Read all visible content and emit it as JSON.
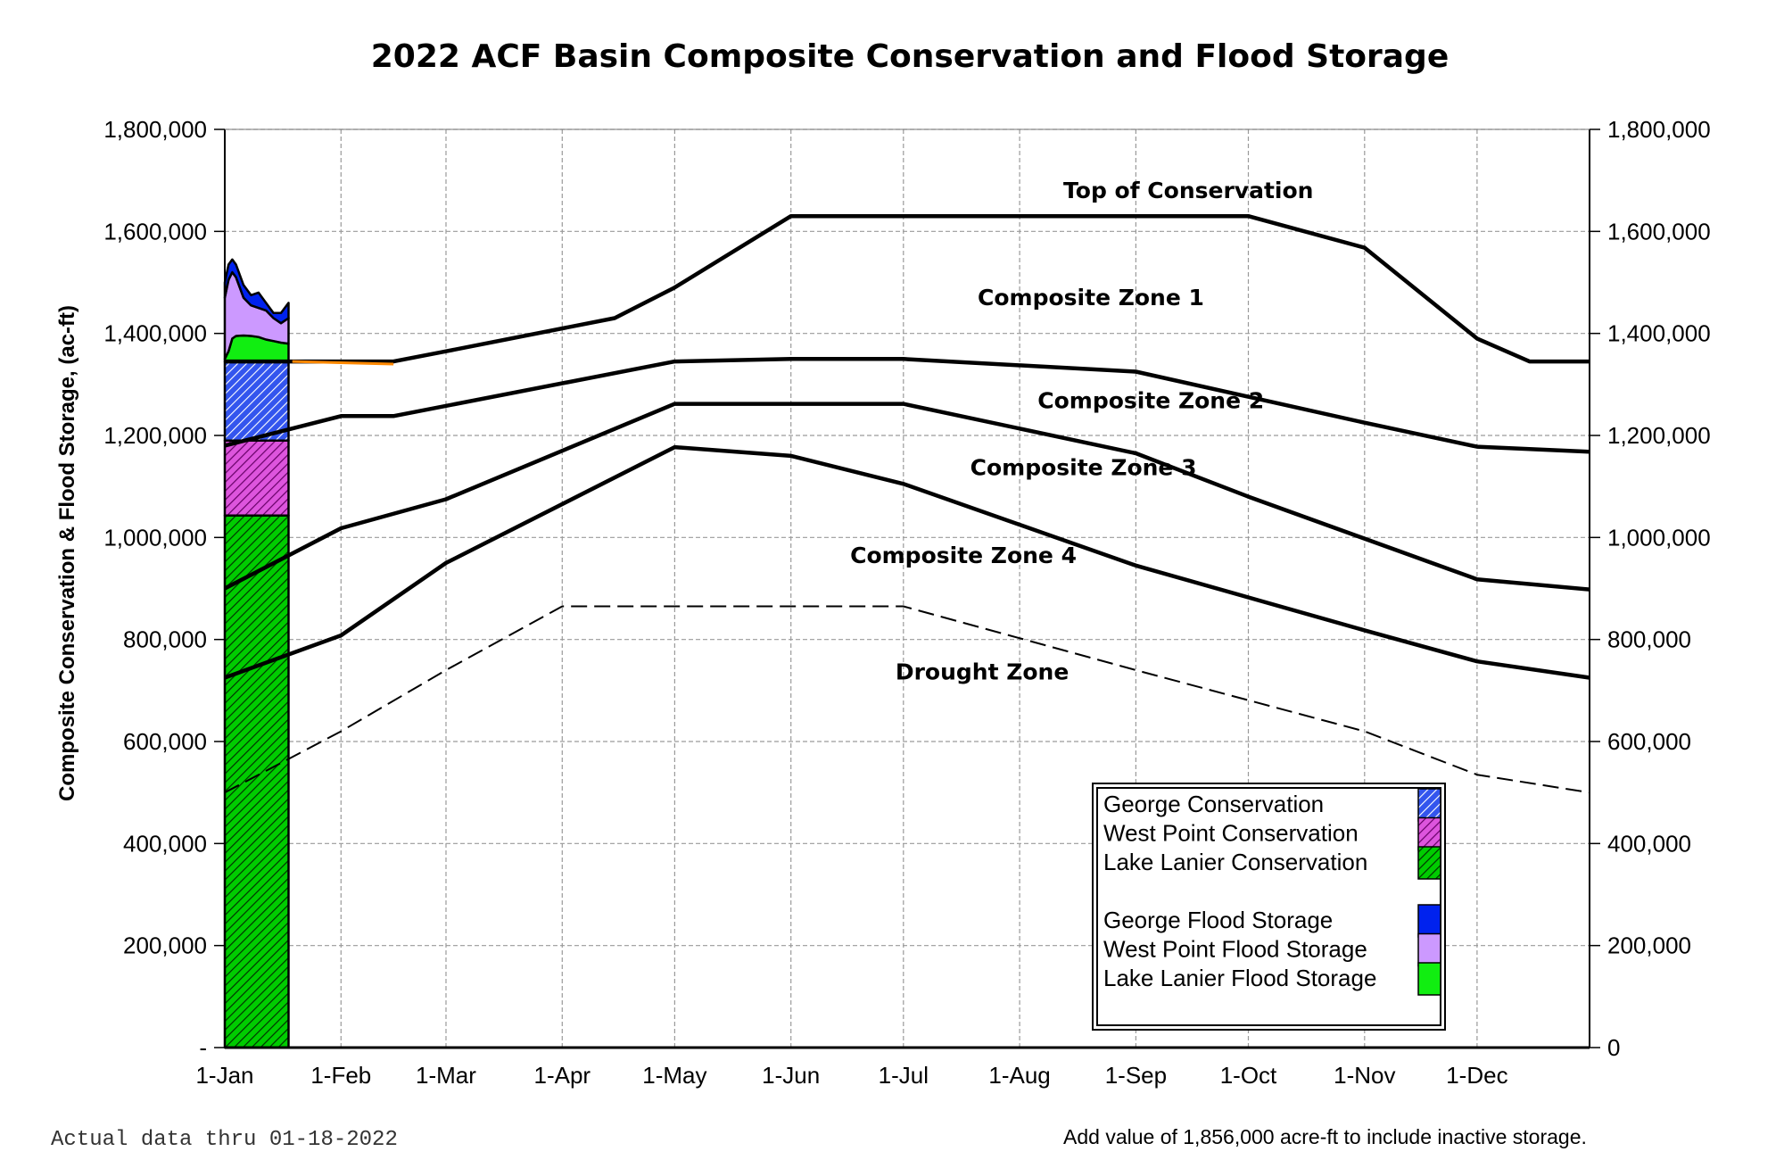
{
  "chart_data": {
    "type": "area",
    "title": "2022 ACF Basin Composite Conservation and Flood Storage",
    "ylabel": "Composite Conservation & Flood Storage, (ac-ft)",
    "xlabel": "",
    "ylim": [
      0,
      1800000
    ],
    "xlim": [
      "2022-01-01",
      "2022-12-31"
    ],
    "x_ticks": [
      "1-Jan",
      "1-Feb",
      "1-Mar",
      "1-Apr",
      "1-May",
      "1-Jun",
      "1-Jul",
      "1-Aug",
      "1-Sep",
      "1-Oct",
      "1-Nov",
      "1-Dec"
    ],
    "x_tick_dates": [
      "2022-01-01",
      "2022-02-01",
      "2022-03-01",
      "2022-04-01",
      "2022-05-01",
      "2022-06-01",
      "2022-07-01",
      "2022-08-01",
      "2022-09-01",
      "2022-10-01",
      "2022-11-01",
      "2022-12-01"
    ],
    "y_ticks_left": [
      "-",
      "200,000",
      "400,000",
      "600,000",
      "800,000",
      "1,000,000",
      "1,200,000",
      "1,400,000",
      "1,600,000",
      "1,800,000"
    ],
    "y_ticks_right": [
      "0",
      "200,000",
      "400,000",
      "600,000",
      "800,000",
      "1,000,000",
      "1,200,000",
      "1,400,000",
      "1,600,000",
      "1,800,000"
    ],
    "y_tick_values": [
      0,
      200000,
      400000,
      600000,
      800000,
      1000000,
      1200000,
      1400000,
      1600000,
      1800000
    ],
    "grid": true,
    "zone_lines": [
      {
        "name": "Top of Conservation",
        "style": "solid",
        "points": [
          [
            "2022-01-01",
            1345000
          ],
          [
            "2022-02-15",
            1345000
          ],
          [
            "2022-03-01",
            1365000
          ],
          [
            "2022-04-15",
            1430000
          ],
          [
            "2022-05-01",
            1490000
          ],
          [
            "2022-06-01",
            1630000
          ],
          [
            "2022-10-01",
            1630000
          ],
          [
            "2022-11-01",
            1568000
          ],
          [
            "2022-12-01",
            1390000
          ],
          [
            "2022-12-15",
            1345000
          ],
          [
            "2022-12-31",
            1345000
          ]
        ]
      },
      {
        "name": "Composite Zone 1 lower",
        "style": "solid",
        "points": [
          [
            "2022-01-01",
            1180000
          ],
          [
            "2022-02-01",
            1238000
          ],
          [
            "2022-02-15",
            1238000
          ],
          [
            "2022-05-01",
            1345000
          ],
          [
            "2022-06-01",
            1350000
          ],
          [
            "2022-07-01",
            1350000
          ],
          [
            "2022-09-01",
            1325000
          ],
          [
            "2022-11-01",
            1225000
          ],
          [
            "2022-12-01",
            1178000
          ],
          [
            "2022-12-31",
            1168000
          ]
        ]
      },
      {
        "name": "Composite Zone 2 lower",
        "style": "solid",
        "points": [
          [
            "2022-01-01",
            900000
          ],
          [
            "2022-02-01",
            1018000
          ],
          [
            "2022-03-01",
            1075000
          ],
          [
            "2022-05-01",
            1262000
          ],
          [
            "2022-07-01",
            1262000
          ],
          [
            "2022-09-01",
            1165000
          ],
          [
            "2022-10-01",
            1080000
          ],
          [
            "2022-12-01",
            918000
          ],
          [
            "2022-12-31",
            898000
          ]
        ]
      },
      {
        "name": "Composite Zone 3 lower",
        "style": "solid",
        "points": [
          [
            "2022-01-01",
            725000
          ],
          [
            "2022-02-01",
            808000
          ],
          [
            "2022-03-01",
            950000
          ],
          [
            "2022-05-01",
            1177000
          ],
          [
            "2022-06-01",
            1160000
          ],
          [
            "2022-07-01",
            1105000
          ],
          [
            "2022-09-01",
            945000
          ],
          [
            "2022-11-01",
            818000
          ],
          [
            "2022-12-01",
            757000
          ],
          [
            "2022-12-31",
            725000
          ]
        ]
      },
      {
        "name": "Drought line",
        "style": "dashed",
        "points": [
          [
            "2022-01-01",
            500000
          ],
          [
            "2022-02-01",
            620000
          ],
          [
            "2022-03-01",
            740000
          ],
          [
            "2022-04-01",
            865000
          ],
          [
            "2022-07-01",
            865000
          ],
          [
            "2022-09-01",
            740000
          ],
          [
            "2022-11-01",
            620000
          ],
          [
            "2022-12-01",
            535000
          ],
          [
            "2022-12-31",
            500000
          ]
        ]
      }
    ],
    "zone_labels": [
      {
        "text": "Top of Conservation",
        "date": "2022-09-15",
        "value": 1665000
      },
      {
        "text": "Composite Zone 1",
        "date": "2022-08-20",
        "value": 1455000
      },
      {
        "text": "Composite Zone 2",
        "date": "2022-09-05",
        "value": 1253000
      },
      {
        "text": "Composite Zone 3",
        "date": "2022-08-18",
        "value": 1122000
      },
      {
        "text": "Composite Zone 4",
        "date": "2022-07-17",
        "value": 950000
      },
      {
        "text": "Drought Zone",
        "date": "2022-07-22",
        "value": 722000
      }
    ],
    "series": [
      {
        "name": "Lake Lanier Conservation",
        "color": "#00cc00",
        "pattern": "hatch",
        "x": [
          "2022-01-01",
          "2022-01-18"
        ],
        "lower": [
          0,
          0
        ],
        "upper": [
          1043000,
          1043000
        ]
      },
      {
        "name": "West Point Conservation",
        "color": "#cc33cc",
        "pattern": "hatch",
        "x": [
          "2022-01-01",
          "2022-01-18"
        ],
        "lower": [
          1043000,
          1043000
        ],
        "upper": [
          1190000,
          1190000
        ]
      },
      {
        "name": "George Conservation",
        "color": "#2244dd",
        "pattern": "hatch",
        "x": [
          "2022-01-01",
          "2022-01-18"
        ],
        "lower": [
          1190000,
          1190000
        ],
        "upper": [
          1345000,
          1345000
        ]
      },
      {
        "name": "Lake Lanier Flood Storage",
        "color": "#11ee11",
        "pattern": "solid",
        "x": [
          "2022-01-01",
          "2022-01-02",
          "2022-01-03",
          "2022-01-04",
          "2022-01-06",
          "2022-01-08",
          "2022-01-10",
          "2022-01-12",
          "2022-01-14",
          "2022-01-16",
          "2022-01-18"
        ],
        "lower": [
          1345000,
          1345000,
          1345000,
          1345000,
          1345000,
          1345000,
          1345000,
          1345000,
          1345000,
          1345000,
          1345000
        ],
        "upper": [
          1350000,
          1365000,
          1390000,
          1395000,
          1396000,
          1395000,
          1393000,
          1388000,
          1385000,
          1382000,
          1380000
        ]
      },
      {
        "name": "West Point Flood Storage",
        "color": "#cc99ff",
        "pattern": "solid",
        "x": [
          "2022-01-01",
          "2022-01-02",
          "2022-01-03",
          "2022-01-04",
          "2022-01-06",
          "2022-01-08",
          "2022-01-10",
          "2022-01-12",
          "2022-01-14",
          "2022-01-16",
          "2022-01-18"
        ],
        "lower": [
          1350000,
          1365000,
          1390000,
          1395000,
          1396000,
          1395000,
          1393000,
          1388000,
          1385000,
          1382000,
          1380000
        ],
        "upper": [
          1470000,
          1505000,
          1520000,
          1510000,
          1470000,
          1455000,
          1450000,
          1445000,
          1430000,
          1420000,
          1430000
        ]
      },
      {
        "name": "George Flood Storage",
        "color": "#0022ee",
        "pattern": "solid",
        "x": [
          "2022-01-01",
          "2022-01-02",
          "2022-01-03",
          "2022-01-04",
          "2022-01-06",
          "2022-01-08",
          "2022-01-10",
          "2022-01-12",
          "2022-01-14",
          "2022-01-16",
          "2022-01-18"
        ],
        "lower": [
          1470000,
          1505000,
          1520000,
          1510000,
          1470000,
          1455000,
          1450000,
          1445000,
          1430000,
          1420000,
          1430000
        ],
        "upper": [
          1500000,
          1535000,
          1545000,
          1535000,
          1495000,
          1475000,
          1480000,
          1460000,
          1440000,
          1440000,
          1460000
        ]
      }
    ],
    "actual_series": {
      "name": "Composite storage",
      "color": "#ff8800",
      "points": [
        [
          "2022-01-19",
          1345000
        ],
        [
          "2022-02-15",
          1340000
        ]
      ]
    },
    "legend": {
      "position": "bottom-right",
      "groups": [
        [
          "George Conservation",
          "West Point Conservation",
          "Lake Lanier Conservation"
        ],
        [
          "George Flood Storage",
          "West Point Flood Storage",
          "Lake Lanier Flood Storage"
        ]
      ]
    }
  },
  "notes": {
    "actual_data": "Actual data thru 01-18-2022",
    "inactive": "Add value of 1,856,000 acre-ft to include inactive storage."
  }
}
